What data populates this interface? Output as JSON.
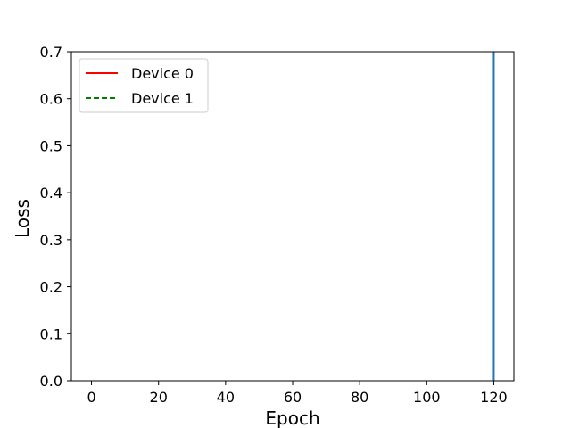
{
  "chart_data": {
    "type": "line",
    "title": "",
    "xlabel": "Epoch",
    "ylabel": "Loss",
    "xlim": [
      -6,
      126
    ],
    "ylim": [
      0,
      0.7
    ],
    "xticks": [
      0,
      20,
      40,
      60,
      80,
      100,
      120
    ],
    "xtick_labels": [
      "0",
      "20",
      "40",
      "60",
      "80",
      "100",
      "120"
    ],
    "yticks": [
      0.0,
      0.1,
      0.2,
      0.3,
      0.4,
      0.5,
      0.6,
      0.7
    ],
    "ytick_labels": [
      "0.0",
      "0.1",
      "0.2",
      "0.3",
      "0.4",
      "0.5",
      "0.6",
      "0.7"
    ],
    "grid": false,
    "legend_position": "top-left",
    "series": [
      {
        "name": "Device 0",
        "color": "#ff0000",
        "dash": "solid",
        "x": [],
        "y": []
      },
      {
        "name": "Device 1",
        "color": "#008000",
        "dash": "dashed",
        "x": [],
        "y": []
      }
    ],
    "vertical_lines": [
      {
        "x": 120,
        "color": "#1f77b4"
      }
    ]
  }
}
